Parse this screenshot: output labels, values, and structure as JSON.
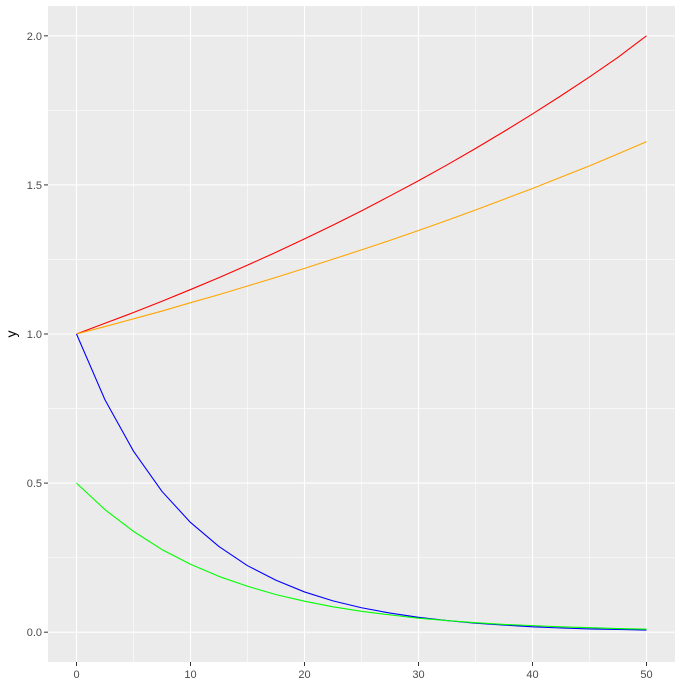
{
  "chart_data": {
    "type": "line",
    "title": "",
    "xlabel": "",
    "ylabel": "y",
    "xlim": [
      -2.5,
      52.5
    ],
    "ylim": [
      -0.1,
      2.1
    ],
    "x_ticks": [
      0,
      10,
      20,
      30,
      40,
      50
    ],
    "x_tick_labels": [
      "0",
      "10",
      "20",
      "30",
      "40",
      "50"
    ],
    "y_ticks": [
      0,
      0.5,
      1,
      1.5,
      2
    ],
    "y_tick_labels": [
      "0.0",
      "0.5",
      "1.0",
      "1.5",
      "2.0"
    ],
    "grid": true,
    "legend": "none",
    "background": "#ebebeb",
    "x": [
      0,
      2.5,
      5,
      7.5,
      10,
      12.5,
      15,
      17.5,
      20,
      22.5,
      25,
      27.5,
      30,
      32.5,
      35,
      37.5,
      40,
      42.5,
      45,
      47.5,
      50
    ],
    "series": [
      {
        "color": "#ff0000",
        "values": [
          1.0,
          1.036,
          1.072,
          1.11,
          1.149,
          1.189,
          1.231,
          1.274,
          1.319,
          1.365,
          1.413,
          1.463,
          1.514,
          1.567,
          1.622,
          1.679,
          1.738,
          1.799,
          1.862,
          1.928,
          2.0
        ]
      },
      {
        "color": "#ffa500",
        "values": [
          1.0,
          1.025,
          1.051,
          1.077,
          1.105,
          1.132,
          1.161,
          1.19,
          1.22,
          1.251,
          1.282,
          1.314,
          1.347,
          1.381,
          1.416,
          1.452,
          1.488,
          1.526,
          1.564,
          1.604,
          1.645
        ]
      },
      {
        "color": "#0000ff",
        "values": [
          1.0,
          0.779,
          0.607,
          0.472,
          0.368,
          0.287,
          0.223,
          0.174,
          0.135,
          0.105,
          0.082,
          0.064,
          0.05,
          0.039,
          0.03,
          0.024,
          0.018,
          0.014,
          0.011,
          0.009,
          0.007
        ]
      },
      {
        "color": "#00ff00",
        "values": [
          0.5,
          0.411,
          0.338,
          0.277,
          0.228,
          0.187,
          0.154,
          0.126,
          0.104,
          0.085,
          0.07,
          0.058,
          0.047,
          0.039,
          0.032,
          0.026,
          0.022,
          0.018,
          0.015,
          0.012,
          0.01
        ]
      }
    ]
  }
}
